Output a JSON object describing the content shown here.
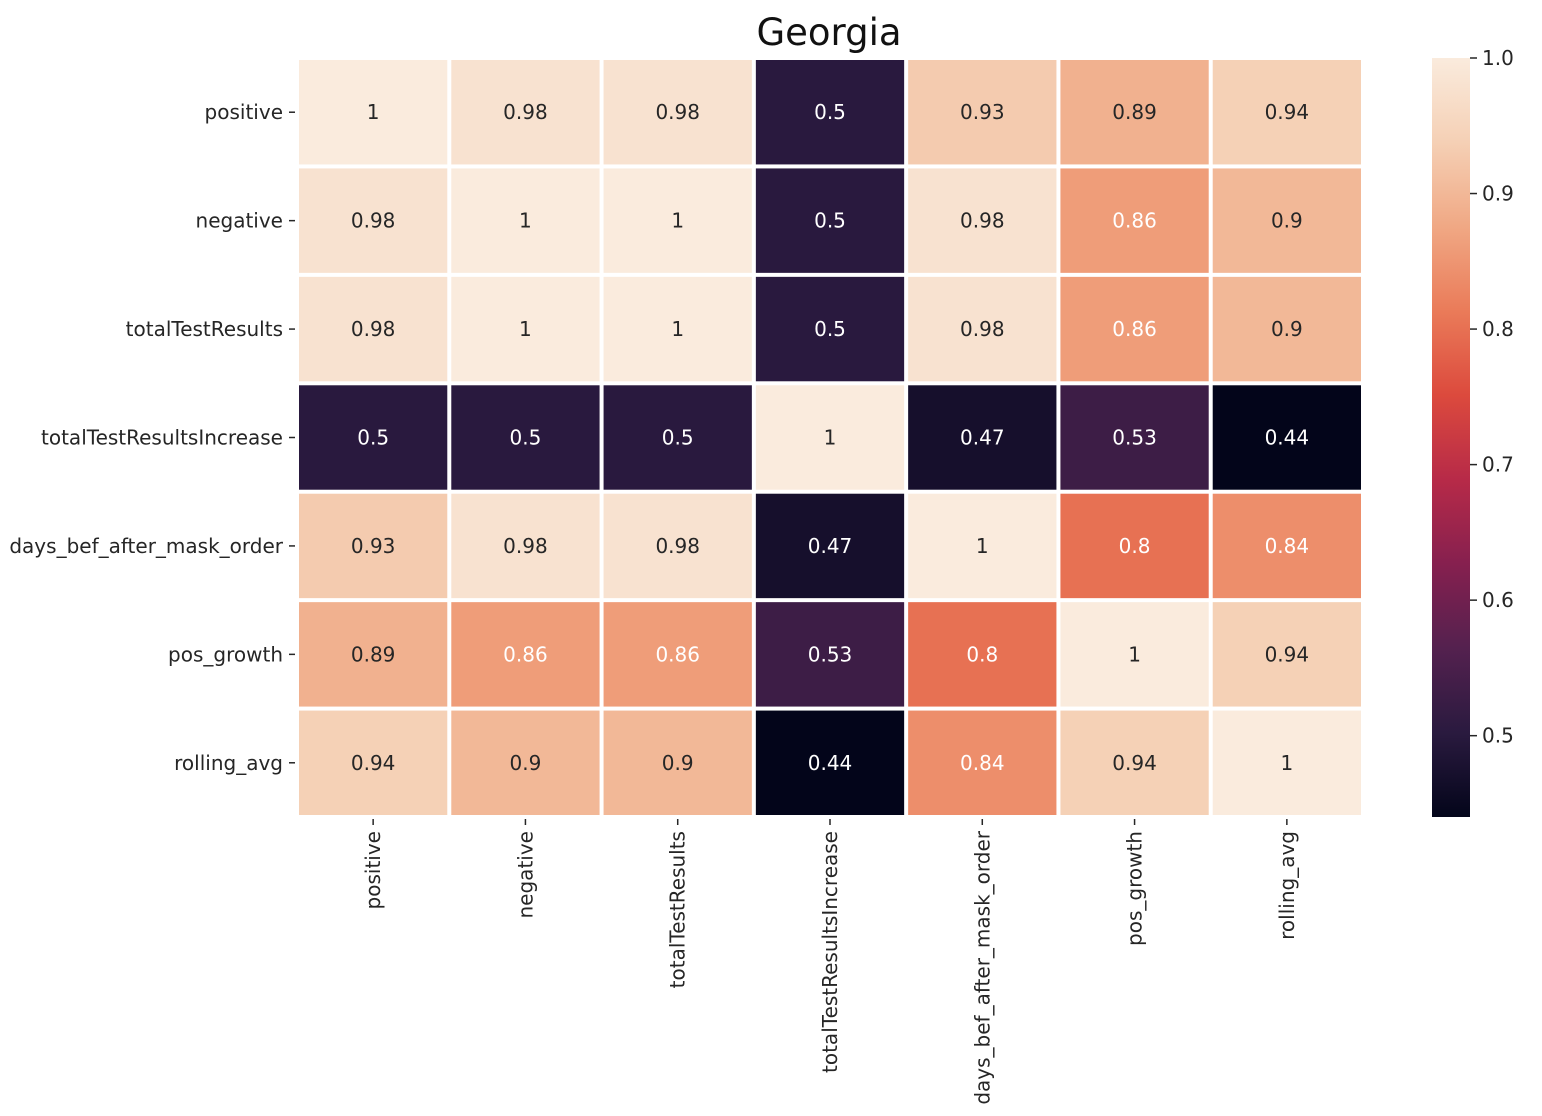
{
  "chart_data": {
    "type": "heatmap",
    "title": "Georgia",
    "xlabel": "",
    "ylabel": "",
    "row_labels": [
      "positive",
      "negative",
      "totalTestResults",
      "totalTestResultsIncrease",
      "days_bef_after_mask_order",
      "pos_growth",
      "rolling_avg"
    ],
    "col_labels": [
      "positive",
      "negative",
      "totalTestResults",
      "totalTestResultsIncrease",
      "days_bef_after_mask_order",
      "pos_growth",
      "rolling_avg"
    ],
    "values": [
      [
        1,
        0.98,
        0.98,
        0.5,
        0.93,
        0.89,
        0.94
      ],
      [
        0.98,
        1,
        1,
        0.5,
        0.98,
        0.86,
        0.9
      ],
      [
        0.98,
        1,
        1,
        0.5,
        0.98,
        0.86,
        0.9
      ],
      [
        0.5,
        0.5,
        0.5,
        1,
        0.47,
        0.53,
        0.44
      ],
      [
        0.93,
        0.98,
        0.98,
        0.47,
        1,
        0.8,
        0.84
      ],
      [
        0.89,
        0.86,
        0.86,
        0.53,
        0.8,
        1,
        0.94
      ],
      [
        0.94,
        0.9,
        0.9,
        0.44,
        0.84,
        0.94,
        1
      ]
    ],
    "annotations": [
      [
        "1",
        "0.98",
        "0.98",
        "0.5",
        "0.93",
        "0.89",
        "0.94"
      ],
      [
        "0.98",
        "1",
        "1",
        "0.5",
        "0.98",
        "0.86",
        "0.9"
      ],
      [
        "0.98",
        "1",
        "1",
        "0.5",
        "0.98",
        "0.86",
        "0.9"
      ],
      [
        "0.5",
        "0.5",
        "0.5",
        "1",
        "0.47",
        "0.53",
        "0.44"
      ],
      [
        "0.93",
        "0.98",
        "0.98",
        "0.47",
        "1",
        "0.8",
        "0.84"
      ],
      [
        "0.89",
        "0.86",
        "0.86",
        "0.53",
        "0.8",
        "1",
        "0.94"
      ],
      [
        "0.94",
        "0.9",
        "0.9",
        "0.44",
        "0.84",
        "0.94",
        "1"
      ]
    ],
    "colorbar": {
      "min": 0.44,
      "max": 1.0,
      "ticks": [
        0.5,
        0.6,
        0.7,
        0.8,
        0.9,
        1.0
      ],
      "tick_labels": [
        "0.5",
        "0.6",
        "0.7",
        "0.8",
        "0.9",
        "1.0"
      ],
      "colormap": "rocket",
      "stops": [
        "#03051a",
        "#2a1a3f",
        "#54214f",
        "#86204f",
        "#b72a48",
        "#dc4a3d",
        "#ea7b59",
        "#f0a884",
        "#f5d0b5",
        "#faebdd"
      ]
    },
    "gridline_color": "#ffffff",
    "text_color_dark": "#262626",
    "text_color_light": "#ffffff"
  }
}
